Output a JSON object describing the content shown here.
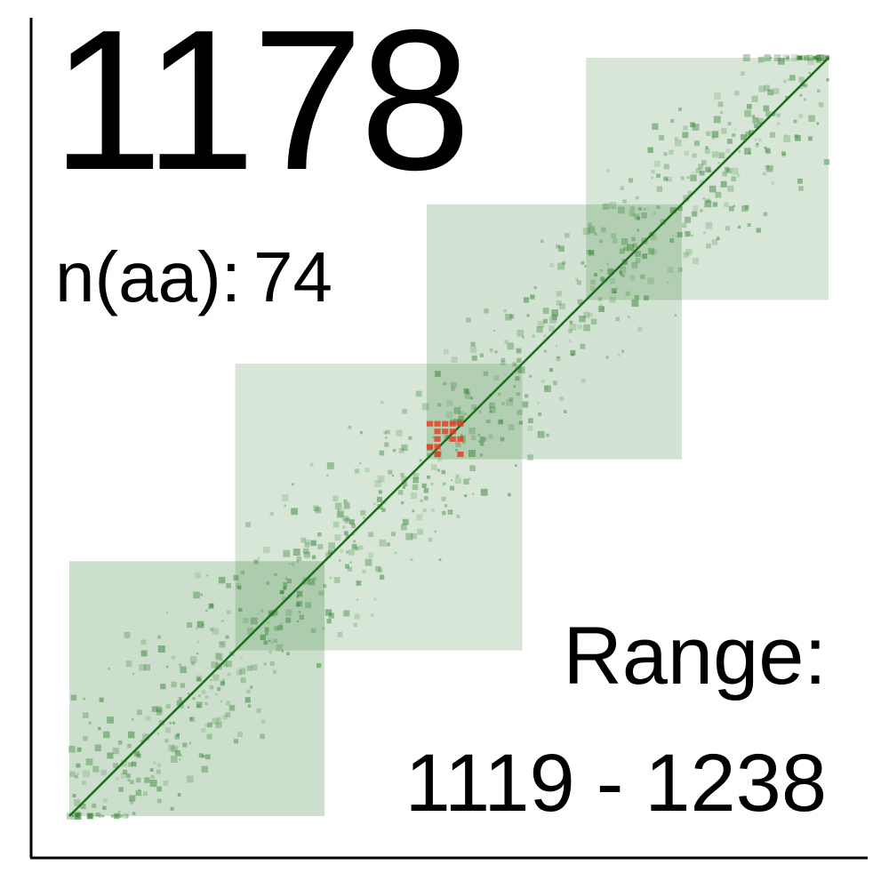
{
  "chart_data": {
    "type": "heatmap",
    "title": "1178",
    "stats": {
      "label": "n(aa):",
      "value": "74"
    },
    "range": {
      "label": "Range:",
      "start": "1119",
      "separator": "-",
      "end": "1238"
    },
    "residue_range": [
      1119,
      1238
    ],
    "colors": {
      "contact": "#2e7d2e",
      "diagonal": "#1f6e1f",
      "highlight": "#e53a1e",
      "axis": "#000000"
    },
    "blocks": [
      {
        "x": [
          1119,
          1159
        ],
        "y": [
          1119,
          1159
        ],
        "intensity": 0.7
      },
      {
        "x": [
          1145,
          1190
        ],
        "y": [
          1145,
          1190
        ],
        "intensity": 0.55
      },
      {
        "x": [
          1175,
          1215
        ],
        "y": [
          1175,
          1215
        ],
        "intensity": 0.6
      },
      {
        "x": [
          1200,
          1238
        ],
        "y": [
          1200,
          1238
        ],
        "intensity": 0.55
      }
    ],
    "highlight_patch": {
      "x": [
        1175,
        1181
      ],
      "y": [
        1175,
        1181
      ]
    }
  }
}
